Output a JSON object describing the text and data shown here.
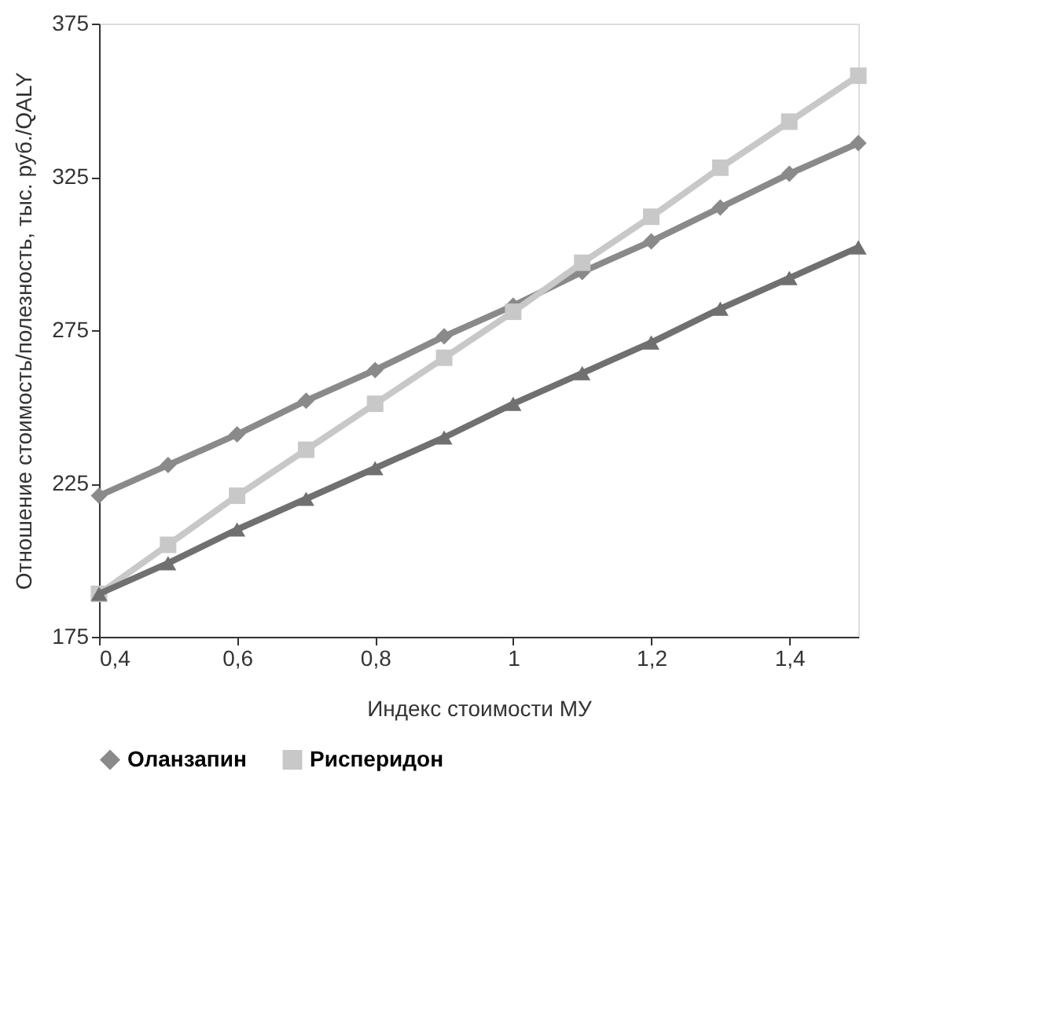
{
  "chart_data": {
    "type": "line",
    "xlabel": "Индекс стоимости МУ",
    "ylabel": "Отношение стоимость/полезность, тыс. руб./QALY",
    "x": [
      0.4,
      0.5,
      0.6,
      0.7,
      0.8,
      0.9,
      1.0,
      1.1,
      1.2,
      1.3,
      1.4,
      1.5
    ],
    "series": [
      {
        "name": "Оланзапин",
        "color": "#8a8a8a",
        "marker": "diamond",
        "values": [
          221,
          231,
          241,
          252,
          262,
          273,
          283,
          294,
          304,
          315,
          326,
          336
        ]
      },
      {
        "name": "Рисперидон",
        "color": "#c8c8c8",
        "marker": "square",
        "values": [
          189,
          205,
          221,
          236,
          251,
          266,
          281,
          297,
          312,
          328,
          343,
          358
        ]
      },
      {
        "color": "#707070",
        "marker": "triangle",
        "values": [
          189,
          199,
          210,
          220,
          230,
          240,
          251,
          261,
          271,
          282,
          292,
          302
        ]
      }
    ],
    "xlim": [
      0.4,
      1.5
    ],
    "xticks": [
      {
        "value": 0.4,
        "label": "0,4"
      },
      {
        "value": 0.6,
        "label": "0,6"
      },
      {
        "value": 0.8,
        "label": "0,8"
      },
      1,
      {
        "value": 1.2,
        "label": "1,2"
      },
      {
        "value": 1.4,
        "label": "1,4"
      }
    ],
    "ylim": [
      175,
      375
    ],
    "yticks": [
      175,
      225,
      275,
      325,
      375
    ],
    "grid": false,
    "legend": "bottom",
    "line_style": "solid"
  }
}
